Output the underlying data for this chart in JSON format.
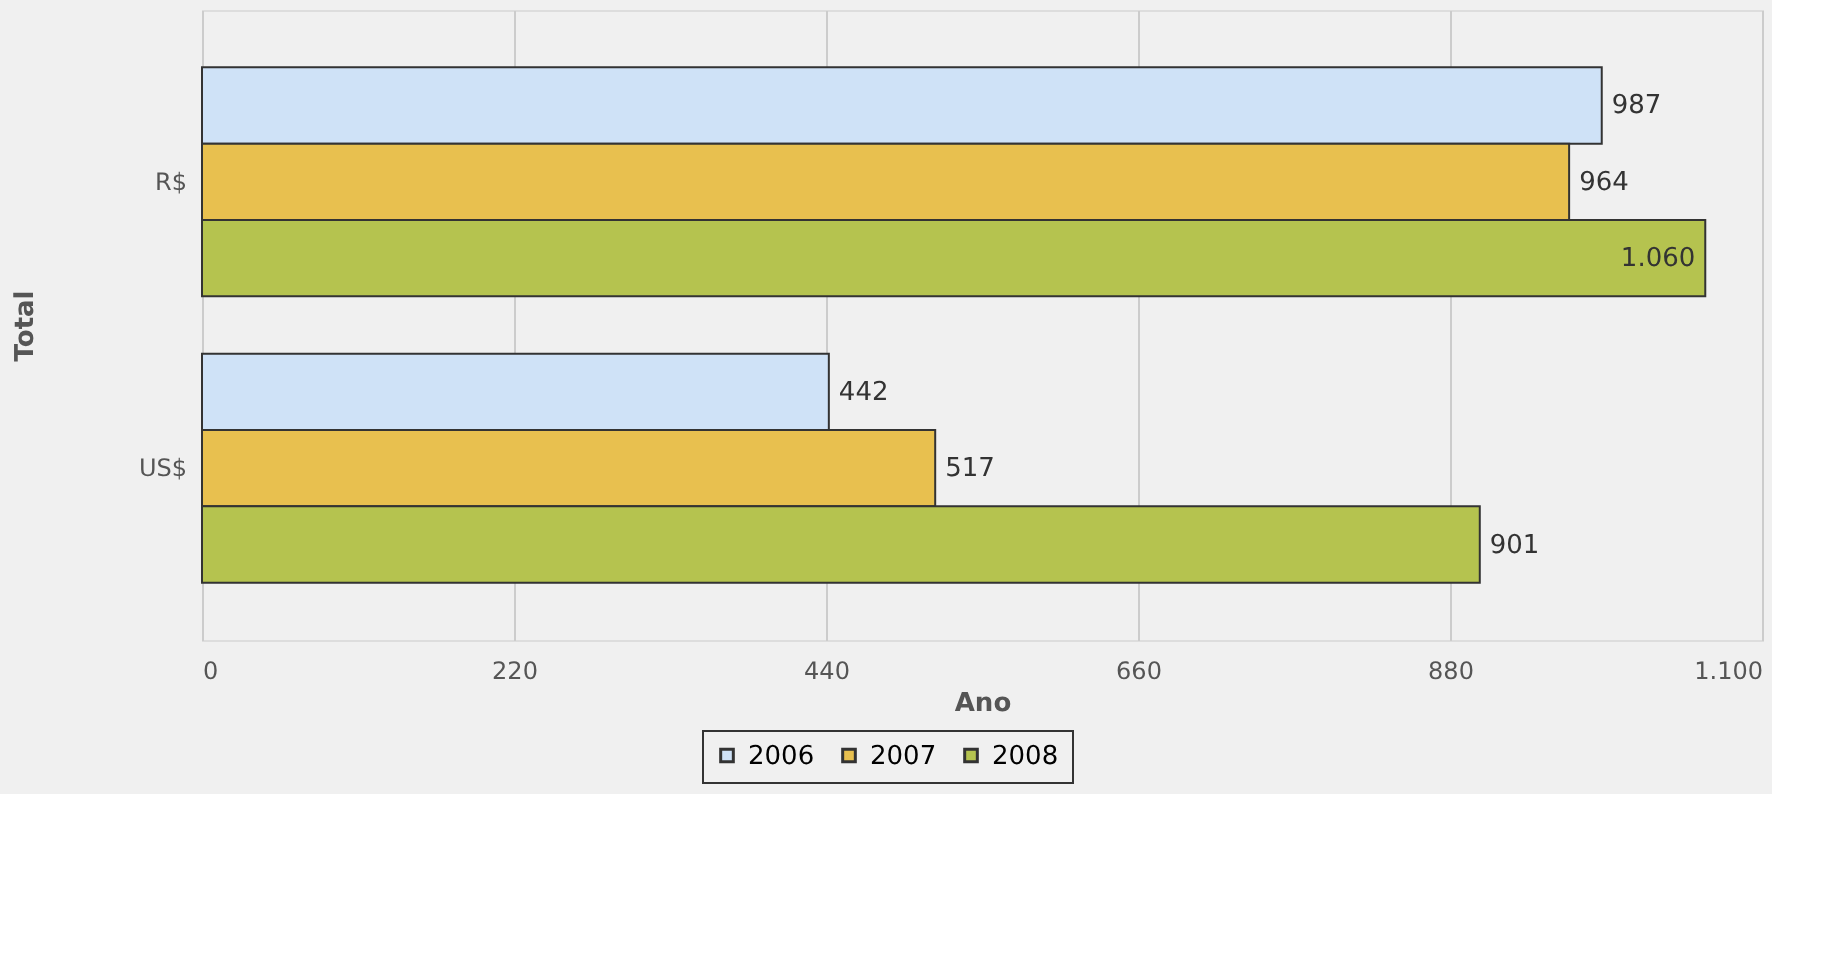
{
  "chart_data": {
    "type": "bar",
    "orientation": "horizontal",
    "xlabel": "Ano",
    "ylabel": "Total",
    "categories": [
      "R$",
      "US$"
    ],
    "series": [
      {
        "name": "2006",
        "color": "#cfe2f7",
        "values": [
          987,
          442
        ],
        "value_labels": [
          "987",
          "442"
        ]
      },
      {
        "name": "2007",
        "color": "#e8c04f",
        "values": [
          964,
          517
        ],
        "value_labels": [
          "964",
          "517"
        ]
      },
      {
        "name": "2008",
        "color": "#b5c34f",
        "values": [
          1060,
          901
        ],
        "value_labels": [
          "1.060",
          "901"
        ]
      }
    ],
    "xlim": [
      0,
      1100
    ],
    "xticks": [
      0,
      220,
      440,
      660,
      880,
      {
        "value": 1100,
        "label": "1.100"
      }
    ],
    "grid": "x",
    "legend": "bottom"
  }
}
